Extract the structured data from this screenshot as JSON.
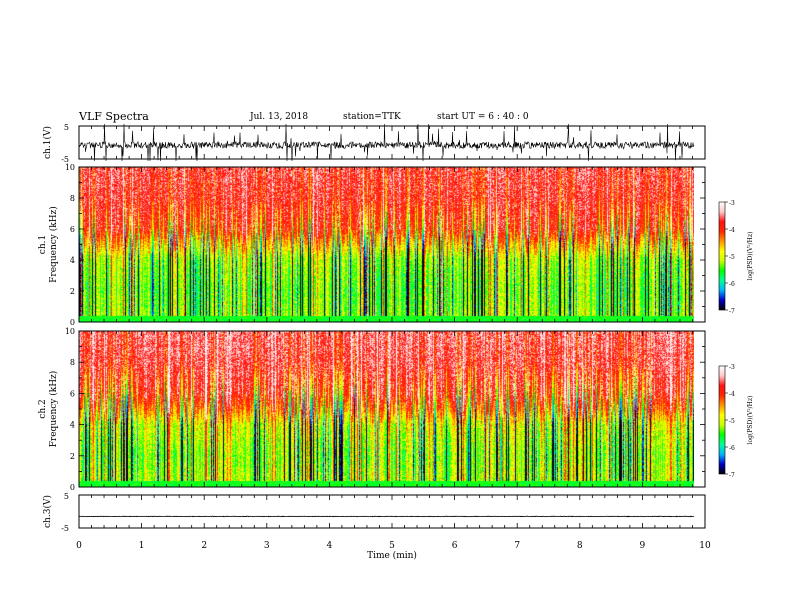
{
  "header": {
    "title": "VLF Spectra",
    "date": "Jul. 13, 2018",
    "station": "station=TTK",
    "start": "start UT = 6 : 40 : 0"
  },
  "colorbar": {
    "label": "log(PSD)(V²/Hz)",
    "ticks": [
      "-3",
      "-4",
      "-5",
      "-6",
      "-7"
    ],
    "range": [
      -7,
      -3
    ],
    "colors": [
      "#000000",
      "#0000c8",
      "#00b4ff",
      "#00ff96",
      "#00ff00",
      "#c8ff00",
      "#ffff00",
      "#ff9600",
      "#ff2800",
      "#ff1414",
      "#ffc8c8",
      "#ffffff"
    ]
  },
  "chart_data": [
    {
      "type": "line",
      "panel": "ch.1 waveform",
      "ylabel": "ch.1(V)",
      "yticks": [
        "5",
        "-5"
      ],
      "ylim": [
        -5,
        5
      ],
      "xlim": [
        0,
        10
      ],
      "baseline": -0.8,
      "noise_amplitude": 1.0,
      "end_minute": 9.83
    },
    {
      "type": "heatmap",
      "panel": "ch.1 spectrogram",
      "ylabel_line1": "ch.1",
      "ylabel_line2": "Frequency (kHz)",
      "yticks": [
        "0",
        "2",
        "4",
        "6",
        "8",
        "10"
      ],
      "ylim": [
        0,
        10
      ],
      "xlim": [
        0,
        10
      ],
      "end_minute": 9.83,
      "color_scale": "log(PSD)",
      "zlim": [
        -7,
        -3
      ],
      "level_profile": [
        {
          "freq_khz": 0.0,
          "log_psd": -5.0
        },
        {
          "freq_khz": 0.5,
          "log_psd": -5.3
        },
        {
          "freq_khz": 2.0,
          "log_psd": -5.4
        },
        {
          "freq_khz": 4.0,
          "log_psd": -5.2
        },
        {
          "freq_khz": 5.0,
          "log_psd": -4.6
        },
        {
          "freq_khz": 6.0,
          "log_psd": -3.9
        },
        {
          "freq_khz": 8.0,
          "log_psd": -3.7
        },
        {
          "freq_khz": 10.0,
          "log_psd": -3.6
        }
      ]
    },
    {
      "type": "heatmap",
      "panel": "ch.2 spectrogram",
      "ylabel_line1": "ch.2",
      "ylabel_line2": "Frequency (kHz)",
      "yticks": [
        "0",
        "2",
        "4",
        "6",
        "8",
        "10"
      ],
      "ylim": [
        0,
        10
      ],
      "xlim": [
        0,
        10
      ],
      "end_minute": 9.83,
      "color_scale": "log(PSD)",
      "zlim": [
        -7,
        -3
      ],
      "level_profile": [
        {
          "freq_khz": 0.0,
          "log_psd": -5.1
        },
        {
          "freq_khz": 2.0,
          "log_psd": -5.3
        },
        {
          "freq_khz": 4.0,
          "log_psd": -5.0
        },
        {
          "freq_khz": 5.0,
          "log_psd": -4.3
        },
        {
          "freq_khz": 6.0,
          "log_psd": -3.8
        },
        {
          "freq_khz": 8.0,
          "log_psd": -3.6
        },
        {
          "freq_khz": 10.0,
          "log_psd": -3.5
        }
      ]
    },
    {
      "type": "line",
      "panel": "ch.3 waveform",
      "ylabel": "ch.3(V)",
      "yticks": [
        "5",
        "-5"
      ],
      "ylim": [
        -5,
        5
      ],
      "xlim": [
        0,
        10
      ],
      "baseline": -1.5,
      "noise_amplitude": 0.08,
      "end_minute": 9.83,
      "xlabel": "Time (min)",
      "xticks": [
        "0",
        "1",
        "2",
        "3",
        "4",
        "5",
        "6",
        "7",
        "8",
        "9",
        "10"
      ]
    }
  ]
}
